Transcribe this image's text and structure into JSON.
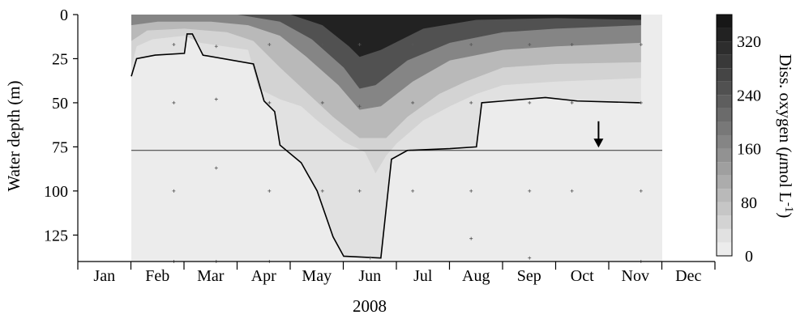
{
  "chart_data": {
    "type": "heatmap",
    "subtype": "depth-time contour plot",
    "xlabel": "2008",
    "ylabel": "Water depth (m)",
    "x_categories": [
      "Jan",
      "Feb",
      "Mar",
      "Apr",
      "May",
      "Jun",
      "Jul",
      "Aug",
      "Sep",
      "Oct",
      "Nov",
      "Dec"
    ],
    "y_ticks": [
      0,
      25,
      50,
      75,
      100,
      125
    ],
    "y_range": [
      0,
      140
    ],
    "y_inverted": true,
    "colorbar": {
      "label": "Diss. oxygen (μmol L⁻¹)",
      "ticks": [
        0,
        80,
        160,
        240,
        320
      ],
      "range": [
        0,
        360
      ],
      "levels": [
        0,
        20,
        40,
        60,
        80,
        100,
        120,
        140,
        160,
        180,
        200,
        220,
        240,
        260,
        280,
        300,
        320,
        340,
        360
      ],
      "colors": [
        "#ececec",
        "#e1e1e1",
        "#d3d3d3",
        "#c6c6c6",
        "#b9b9b9",
        "#acacac",
        "#9f9f9f",
        "#929292",
        "#858585",
        "#787878",
        "#6b6b6b",
        "#5e5e5e",
        "#515151",
        "#454545",
        "#393939",
        "#2d2d2d",
        "#222222",
        "#171717"
      ]
    },
    "contour_fields": [
      {
        "level": 20,
        "depth_by_month": [
          [
            0.0,
            35
          ],
          [
            0.1,
            25
          ],
          [
            0.45,
            23
          ],
          [
            1.0,
            22
          ],
          [
            1.05,
            11
          ],
          [
            1.15,
            11
          ],
          [
            1.3,
            20
          ],
          [
            1.35,
            23
          ],
          [
            2.3,
            28
          ],
          [
            2.5,
            49
          ],
          [
            2.7,
            55
          ],
          [
            2.8,
            74
          ],
          [
            3.2,
            84
          ],
          [
            3.5,
            100
          ],
          [
            3.8,
            126
          ],
          [
            4.0,
            137
          ],
          [
            4.7,
            138
          ],
          [
            4.9,
            82
          ],
          [
            5.2,
            77
          ],
          [
            6.0,
            76
          ],
          [
            6.5,
            75
          ],
          [
            6.6,
            50
          ],
          [
            7.0,
            49
          ],
          [
            7.8,
            47
          ],
          [
            8.4,
            49
          ],
          [
            9.6,
            50
          ]
        ]
      },
      {
        "level": 40,
        "depth_by_month": [
          [
            0.0,
            30
          ],
          [
            0.1,
            18
          ],
          [
            0.4,
            14
          ],
          [
            1.0,
            12
          ],
          [
            1.3,
            16
          ],
          [
            2.2,
            20
          ],
          [
            2.4,
            42
          ],
          [
            2.8,
            48
          ],
          [
            3.2,
            52
          ],
          [
            3.5,
            60
          ],
          [
            4.0,
            72
          ],
          [
            4.4,
            78
          ],
          [
            4.6,
            90
          ],
          [
            4.8,
            80
          ],
          [
            5.0,
            73
          ],
          [
            5.5,
            60
          ],
          [
            6.0,
            52
          ],
          [
            6.5,
            45
          ],
          [
            7.0,
            40
          ],
          [
            8.0,
            38
          ],
          [
            9.6,
            36
          ]
        ]
      },
      {
        "level": 80,
        "depth_by_month": [
          [
            0.0,
            15
          ],
          [
            0.3,
            9
          ],
          [
            1.0,
            8
          ],
          [
            1.8,
            10
          ],
          [
            2.3,
            15
          ],
          [
            2.8,
            30
          ],
          [
            3.3,
            44
          ],
          [
            3.8,
            58
          ],
          [
            4.3,
            70
          ],
          [
            4.8,
            70
          ],
          [
            5.2,
            58
          ],
          [
            5.8,
            45
          ],
          [
            6.3,
            38
          ],
          [
            7.0,
            30
          ],
          [
            8.0,
            28
          ],
          [
            9.6,
            27
          ]
        ]
      },
      {
        "level": 160,
        "depth_by_month": [
          [
            0.0,
            6
          ],
          [
            0.5,
            4
          ],
          [
            1.5,
            4
          ],
          [
            2.2,
            6
          ],
          [
            2.8,
            12
          ],
          [
            3.3,
            24
          ],
          [
            3.9,
            40
          ],
          [
            4.3,
            54
          ],
          [
            4.7,
            52
          ],
          [
            5.3,
            38
          ],
          [
            6.0,
            26
          ],
          [
            7.0,
            20
          ],
          [
            8.0,
            18
          ],
          [
            9.6,
            16
          ]
        ]
      },
      {
        "level": 240,
        "depth_by_month": [
          [
            0.0,
            0
          ],
          [
            2.0,
            0
          ],
          [
            2.8,
            4
          ],
          [
            3.4,
            14
          ],
          [
            4.0,
            30
          ],
          [
            4.3,
            42
          ],
          [
            4.6,
            40
          ],
          [
            5.2,
            26
          ],
          [
            6.0,
            16
          ],
          [
            7.0,
            10
          ],
          [
            8.0,
            8
          ],
          [
            9.6,
            6
          ]
        ]
      },
      {
        "level": 320,
        "depth_by_month": [
          [
            3.0,
            0
          ],
          [
            3.6,
            6
          ],
          [
            4.1,
            18
          ],
          [
            4.3,
            24
          ],
          [
            4.7,
            20
          ],
          [
            5.5,
            8
          ],
          [
            6.5,
            3
          ],
          [
            8.0,
            2
          ],
          [
            9.6,
            3
          ]
        ]
      }
    ],
    "oxygen_line_20": [
      [
        0.0,
        35
      ],
      [
        0.1,
        25
      ],
      [
        0.45,
        23
      ],
      [
        1.0,
        22
      ],
      [
        1.05,
        11
      ],
      [
        1.15,
        11
      ],
      [
        1.3,
        20
      ],
      [
        1.35,
        23
      ],
      [
        2.3,
        28
      ],
      [
        2.5,
        49
      ],
      [
        2.7,
        55
      ],
      [
        2.8,
        74
      ],
      [
        3.2,
        84
      ],
      [
        3.5,
        100
      ],
      [
        3.8,
        126
      ],
      [
        4.0,
        137
      ],
      [
        4.7,
        138
      ],
      [
        4.9,
        82
      ],
      [
        5.2,
        77
      ],
      [
        6.0,
        76
      ],
      [
        6.5,
        75
      ],
      [
        6.6,
        50
      ],
      [
        7.0,
        49
      ],
      [
        7.8,
        47
      ],
      [
        8.4,
        49
      ],
      [
        9.6,
        50
      ]
    ],
    "horizontal_line_depth": 77,
    "arrow": {
      "month": 8.8,
      "depth_from": 66,
      "depth_to": 74
    },
    "sampling_points": [
      [
        0.8,
        17
      ],
      [
        0.8,
        50
      ],
      [
        0.8,
        100
      ],
      [
        0.8,
        140
      ],
      [
        1.6,
        18
      ],
      [
        1.6,
        48
      ],
      [
        1.6,
        87
      ],
      [
        1.6,
        140
      ],
      [
        2.6,
        17
      ],
      [
        2.6,
        50
      ],
      [
        2.6,
        100
      ],
      [
        2.6,
        140
      ],
      [
        3.6,
        17
      ],
      [
        3.6,
        50
      ],
      [
        3.6,
        100
      ],
      [
        4.3,
        17
      ],
      [
        4.3,
        52
      ],
      [
        4.3,
        100
      ],
      [
        4.5,
        138
      ],
      [
        5.3,
        17
      ],
      [
        5.3,
        50
      ],
      [
        5.3,
        100
      ],
      [
        6.4,
        17
      ],
      [
        6.4,
        50
      ],
      [
        6.4,
        100
      ],
      [
        6.4,
        127
      ],
      [
        7.5,
        17
      ],
      [
        7.5,
        50
      ],
      [
        7.5,
        100
      ],
      [
        7.5,
        138
      ],
      [
        8.3,
        17
      ],
      [
        8.3,
        50
      ],
      [
        8.3,
        100
      ],
      [
        9.6,
        17
      ],
      [
        9.6,
        50
      ],
      [
        9.6,
        100
      ],
      [
        9.6,
        140
      ]
    ]
  }
}
